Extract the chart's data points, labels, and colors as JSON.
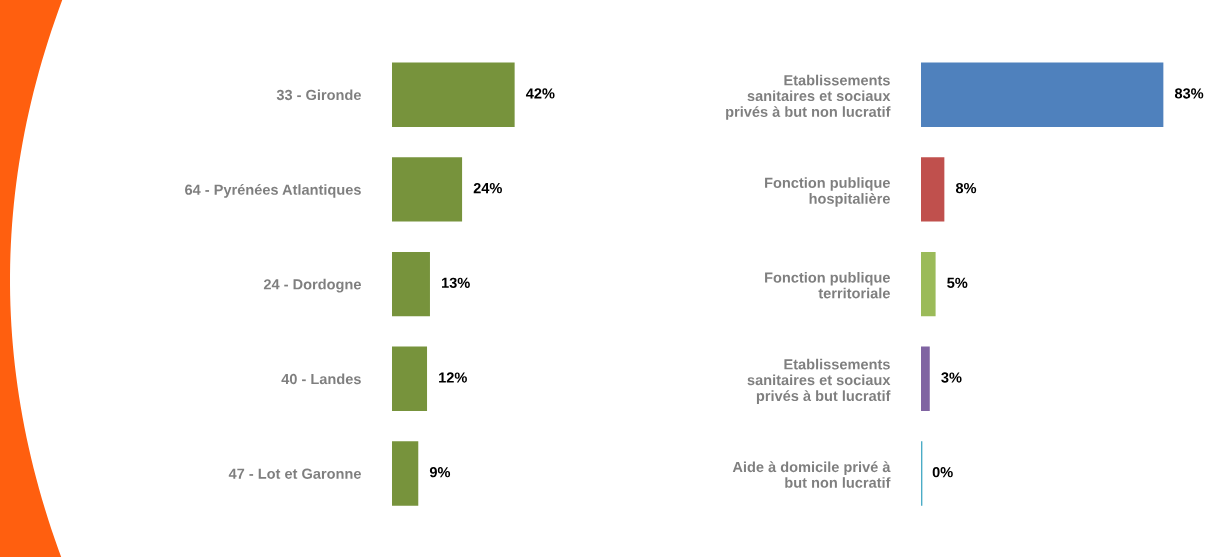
{
  "chart_data": [
    {
      "type": "bar",
      "orientation": "horizontal",
      "data_labels": true,
      "categories": [
        "33 - Gironde",
        "64 - Pyrénées Atlantiques",
        "24 - Dordogne",
        "40 - Landes",
        "47 - Lot et Garonne"
      ],
      "values": [
        42,
        24,
        13,
        12,
        9
      ],
      "value_labels": [
        "42%",
        "24%",
        "13%",
        "12%",
        "9%"
      ],
      "color": "#77933c"
    },
    {
      "type": "bar",
      "orientation": "horizontal",
      "data_labels": true,
      "categories": [
        "Etablissements\nsanitaires et sociaux\nprivés à but non lucratif",
        "Fonction publique\nhospitalière",
        "Fonction publique\nterritoriale",
        "Etablissements\nsanitaires et sociaux\nprivés à but lucratif",
        "Aide à domicile privé à\nbut non lucratif"
      ],
      "values": [
        83,
        8,
        5,
        3,
        0
      ],
      "value_labels": [
        "83%",
        "8%",
        "5%",
        "3%",
        "0%"
      ],
      "colors": [
        "#4f81bd",
        "#c0504d",
        "#9bbb59",
        "#8064a2",
        "#4bacc6"
      ]
    }
  ]
}
